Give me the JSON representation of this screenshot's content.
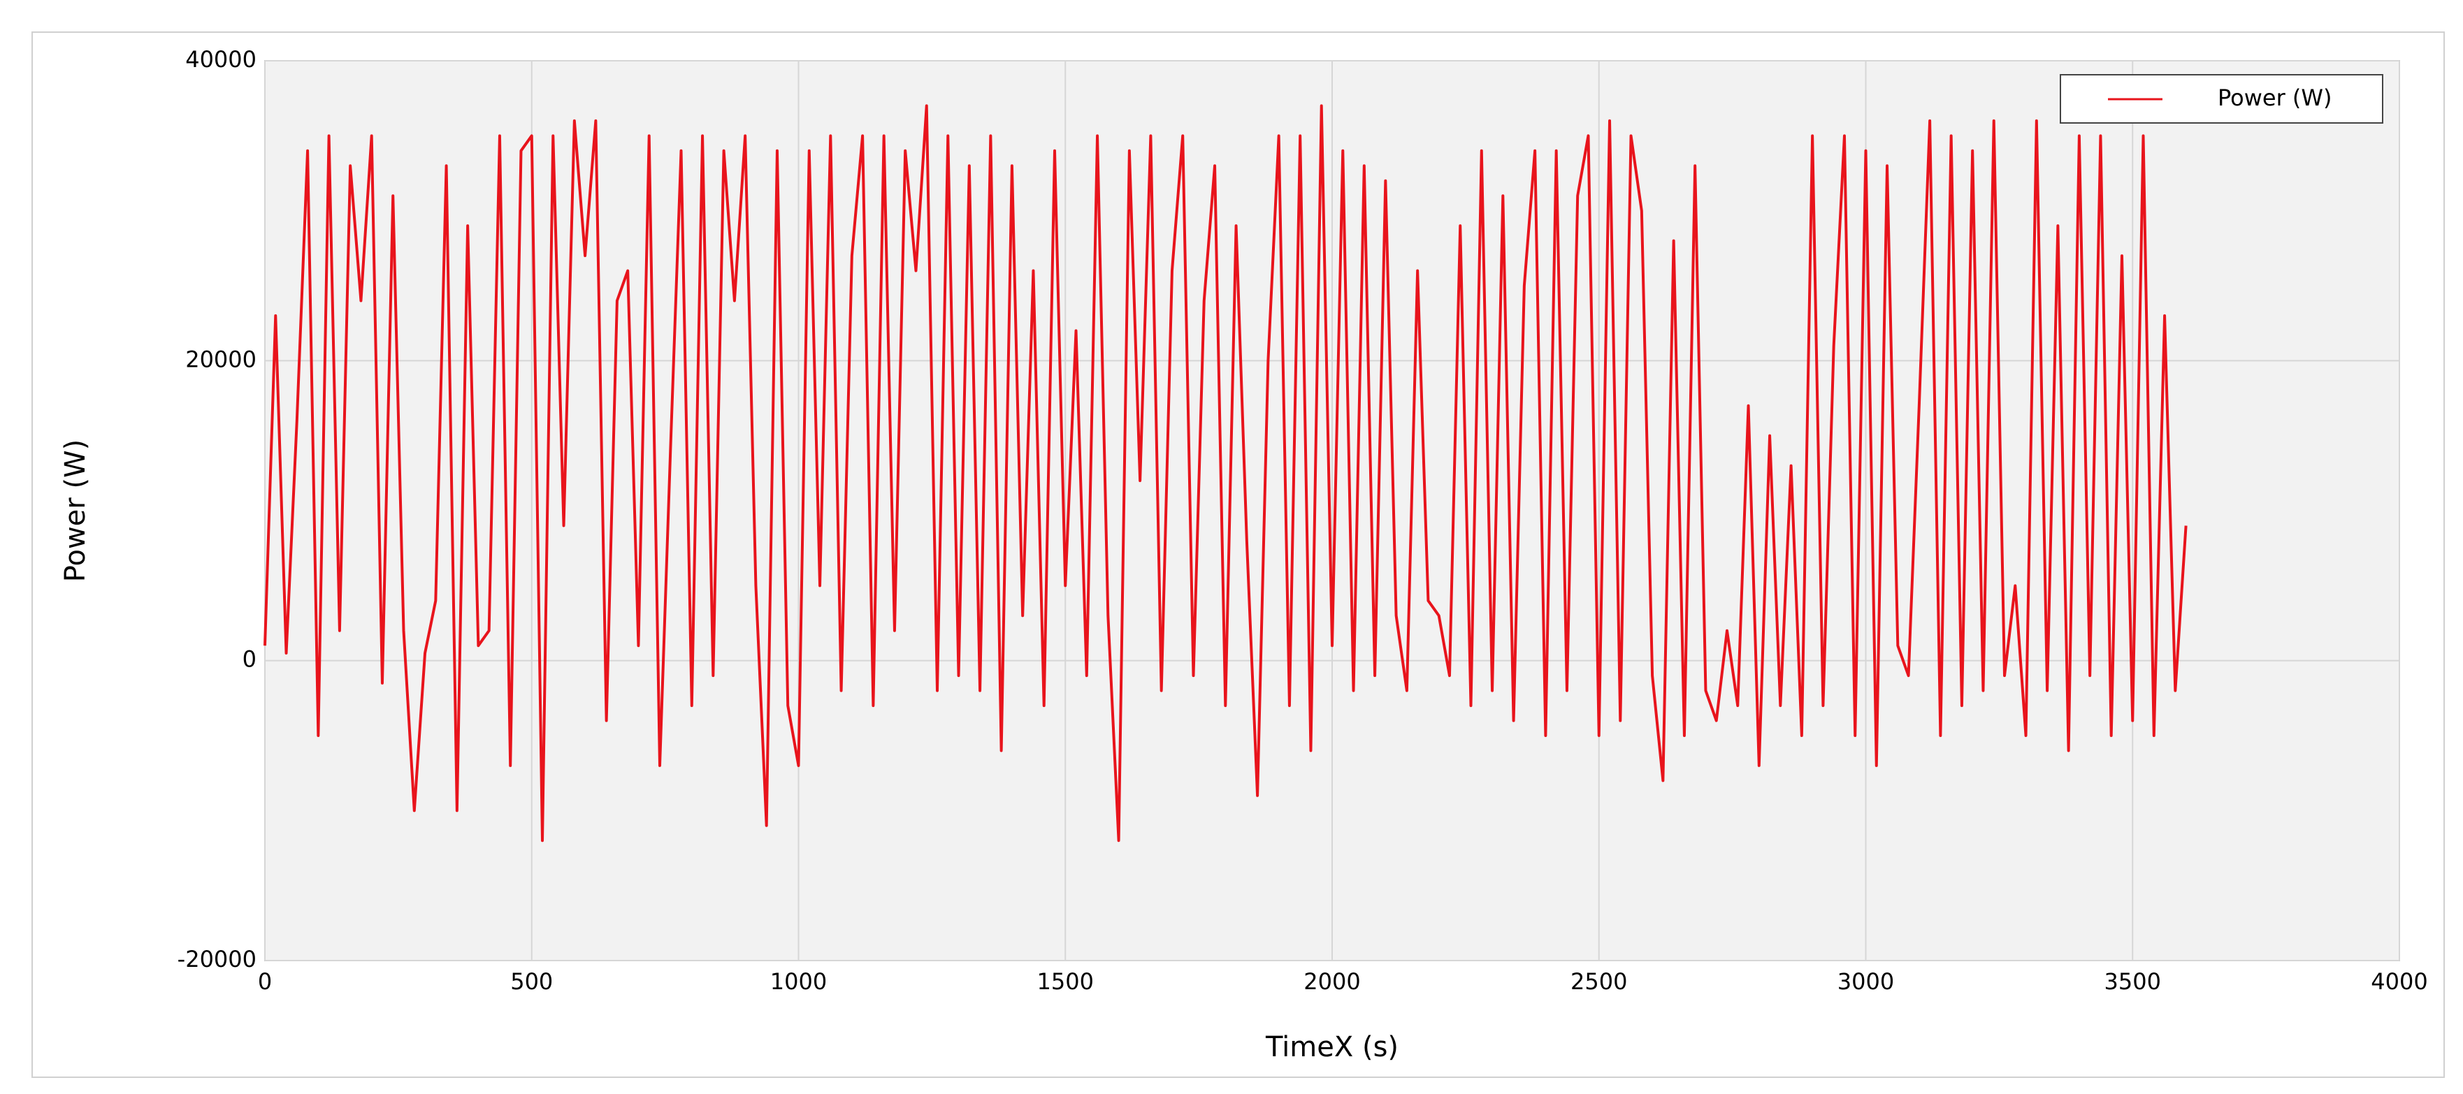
{
  "chart_data": {
    "type": "line",
    "x_label": "TimeX (s)",
    "y_label": "Power (W)",
    "xlim": [
      0,
      4000
    ],
    "xticks": [
      0,
      500,
      1000,
      1500,
      2000,
      2500,
      3000,
      3500,
      4000
    ],
    "ylim": [
      -20000,
      40000
    ],
    "yticks": [
      -20000,
      0,
      20000,
      40000
    ],
    "grid": true,
    "legend": "upper right",
    "x": [
      0,
      20,
      40,
      60,
      80,
      100,
      120,
      140,
      160,
      180,
      200,
      220,
      240,
      260,
      280,
      300,
      320,
      340,
      360,
      380,
      400,
      420,
      440,
      460,
      480,
      500,
      520,
      540,
      560,
      580,
      600,
      620,
      640,
      660,
      680,
      700,
      720,
      740,
      760,
      780,
      800,
      820,
      840,
      860,
      880,
      900,
      920,
      940,
      960,
      980,
      1000,
      1020,
      1040,
      1060,
      1080,
      1100,
      1120,
      1140,
      1160,
      1180,
      1200,
      1220,
      1240,
      1260,
      1280,
      1300,
      1320,
      1340,
      1360,
      1380,
      1400,
      1420,
      1440,
      1460,
      1480,
      1500,
      1520,
      1540,
      1560,
      1580,
      1600,
      1620,
      1640,
      1660,
      1680,
      1700,
      1720,
      1740,
      1760,
      1780,
      1800,
      1820,
      1840,
      1860,
      1880,
      1900,
      1920,
      1940,
      1960,
      1980,
      2000,
      2020,
      2040,
      2060,
      2080,
      2100,
      2120,
      2140,
      2160,
      2180,
      2200,
      2220,
      2240,
      2260,
      2280,
      2300,
      2320,
      2340,
      2360,
      2380,
      2400,
      2420,
      2440,
      2460,
      2480,
      2500,
      2520,
      2540,
      2560,
      2580,
      2600,
      2620,
      2640,
      2660,
      2680,
      2700,
      2720,
      2740,
      2760,
      2780,
      2800,
      2820,
      2840,
      2860,
      2880,
      2900,
      2920,
      2940,
      2960,
      2980,
      3000,
      3020,
      3040,
      3060,
      3080,
      3100,
      3120,
      3140,
      3160,
      3180,
      3200,
      3220,
      3240,
      3260,
      3280,
      3300,
      3320,
      3340,
      3360,
      3380,
      3400,
      3420,
      3440,
      3460,
      3480,
      3500,
      3520,
      3540,
      3560,
      3580,
      3600
    ],
    "series": [
      {
        "name": "Power (W)",
        "color": "#e8141c",
        "values": [
          1000,
          23000,
          500,
          16000,
          34000,
          -5000,
          35000,
          2000,
          33000,
          24000,
          35000,
          -1500,
          31000,
          2000,
          -10000,
          500,
          4000,
          33000,
          -10000,
          29000,
          1000,
          2000,
          35000,
          -7000,
          34000,
          35000,
          -12000,
          35000,
          9000,
          36000,
          27000,
          36000,
          -4000,
          24000,
          26000,
          1000,
          35000,
          -7000,
          14000,
          34000,
          -3000,
          35000,
          -1000,
          34000,
          24000,
          35000,
          5000,
          -11000,
          34000,
          -3000,
          -7000,
          34000,
          5000,
          35000,
          -2000,
          27000,
          35000,
          -3000,
          35000,
          2000,
          34000,
          26000,
          37000,
          -2000,
          35000,
          -1000,
          33000,
          -2000,
          35000,
          -6000,
          33000,
          3000,
          26000,
          -3000,
          34000,
          5000,
          22000,
          -1000,
          35000,
          3000,
          -12000,
          34000,
          12000,
          35000,
          -2000,
          26000,
          35000,
          -1000,
          24000,
          33000,
          -3000,
          29000,
          8000,
          -9000,
          20000,
          35000,
          -3000,
          35000,
          -6000,
          37000,
          1000,
          34000,
          -2000,
          33000,
          -1000,
          32000,
          3000,
          -2000,
          26000,
          4000,
          3000,
          -1000,
          29000,
          -3000,
          34000,
          -2000,
          31000,
          -4000,
          25000,
          34000,
          -5000,
          34000,
          -2000,
          31000,
          35000,
          -5000,
          36000,
          -4000,
          35000,
          30000,
          -1000,
          -8000,
          28000,
          -5000,
          33000,
          -2000,
          -4000,
          2000,
          -3000,
          17000,
          -7000,
          15000,
          -3000,
          13000,
          -5000,
          35000,
          -3000,
          21000,
          35000,
          -5000,
          34000,
          -7000,
          33000,
          1000,
          -1000,
          17000,
          36000,
          -5000,
          35000,
          -3000,
          34000,
          -2000,
          36000,
          -1000,
          5000,
          -5000,
          36000,
          -2000,
          29000,
          -6000,
          35000,
          -1000,
          35000,
          -5000,
          27000,
          -4000,
          35000,
          -5000,
          23000,
          -2000,
          9000
        ]
      }
    ]
  }
}
